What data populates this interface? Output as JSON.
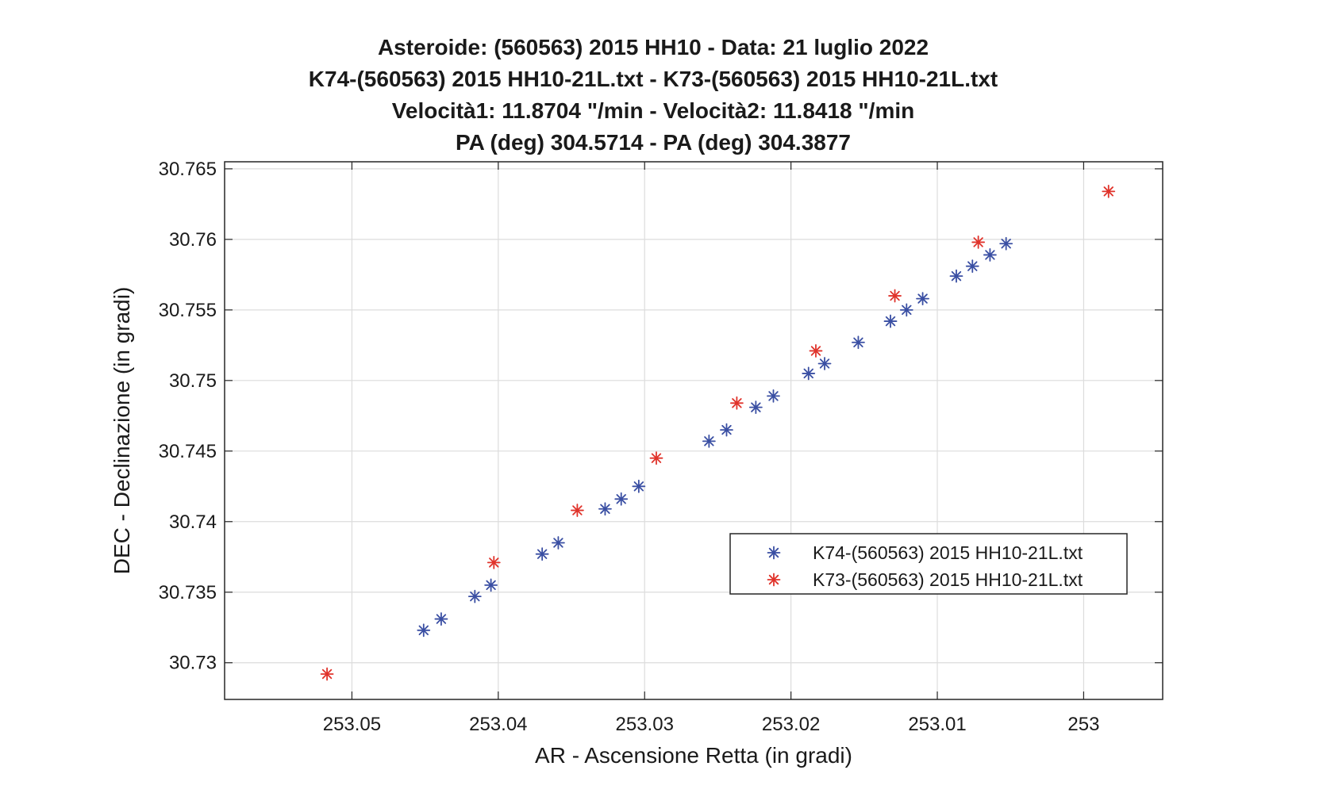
{
  "chart_data": {
    "type": "scatter",
    "title": [
      "Asteroide: (560563) 2015 HH10 -  Data: 21 luglio 2022",
      "K74-(560563) 2015 HH10-21L.txt  -   K73-(560563) 2015 HH10-21L.txt",
      "Velocità1: 11.8704 \"/min  -  Velocità2: 11.8418 \"/min",
      "PA (deg) 304.5714  -  PA (deg) 304.3877"
    ],
    "xlabel": "AR - Ascensione Retta (in gradi)",
    "ylabel": "DEC - Declinazione (in gradi)",
    "x_reversed": true,
    "xlim": [
      252.9946,
      253.0587
    ],
    "ylim": [
      30.7274,
      30.7655
    ],
    "x_ticks": [
      253.05,
      253.04,
      253.03,
      253.02,
      253.01,
      253
    ],
    "x_tick_labels": [
      "253.05",
      "253.04",
      "253.03",
      "253.02",
      "253.01",
      "253"
    ],
    "y_ticks": [
      30.73,
      30.735,
      30.74,
      30.745,
      30.75,
      30.755,
      30.76,
      30.765
    ],
    "y_tick_labels": [
      "30.73",
      "30.735",
      "30.74",
      "30.745",
      "30.75",
      "30.755",
      "30.76",
      "30.765"
    ],
    "grid": true,
    "legend_position": "lower-right",
    "series": [
      {
        "name": "K74-(560563) 2015 HH10-21L.txt",
        "color": "#3a4fa3",
        "marker": "asterisk",
        "x": [
          253.0451,
          253.0439,
          253.0416,
          253.0405,
          253.037,
          253.0359,
          253.0327,
          253.0316,
          253.0304,
          253.0256,
          253.0244,
          253.0224,
          253.0212,
          253.0188,
          253.0177,
          253.0154,
          253.0132,
          253.0121,
          253.011,
          253.0087,
          253.0076,
          253.0064,
          253.0053
        ],
        "y": [
          30.7323,
          30.7331,
          30.7347,
          30.7355,
          30.7377,
          30.7385,
          30.7409,
          30.7416,
          30.7425,
          30.7457,
          30.7465,
          30.7481,
          30.7489,
          30.7505,
          30.7512,
          30.7527,
          30.7542,
          30.755,
          30.7558,
          30.7574,
          30.7581,
          30.7589,
          30.7597
        ]
      },
      {
        "name": "K73-(560563) 2015 HH10-21L.txt",
        "color": "#e0332b",
        "marker": "asterisk",
        "x": [
          253.0517,
          253.0403,
          253.0346,
          253.0292,
          253.0237,
          253.0183,
          253.0129,
          253.0072,
          252.9983
        ],
        "y": [
          30.7292,
          30.7371,
          30.7408,
          30.7445,
          30.7484,
          30.7521,
          30.756,
          30.7598,
          30.7634
        ]
      }
    ]
  }
}
